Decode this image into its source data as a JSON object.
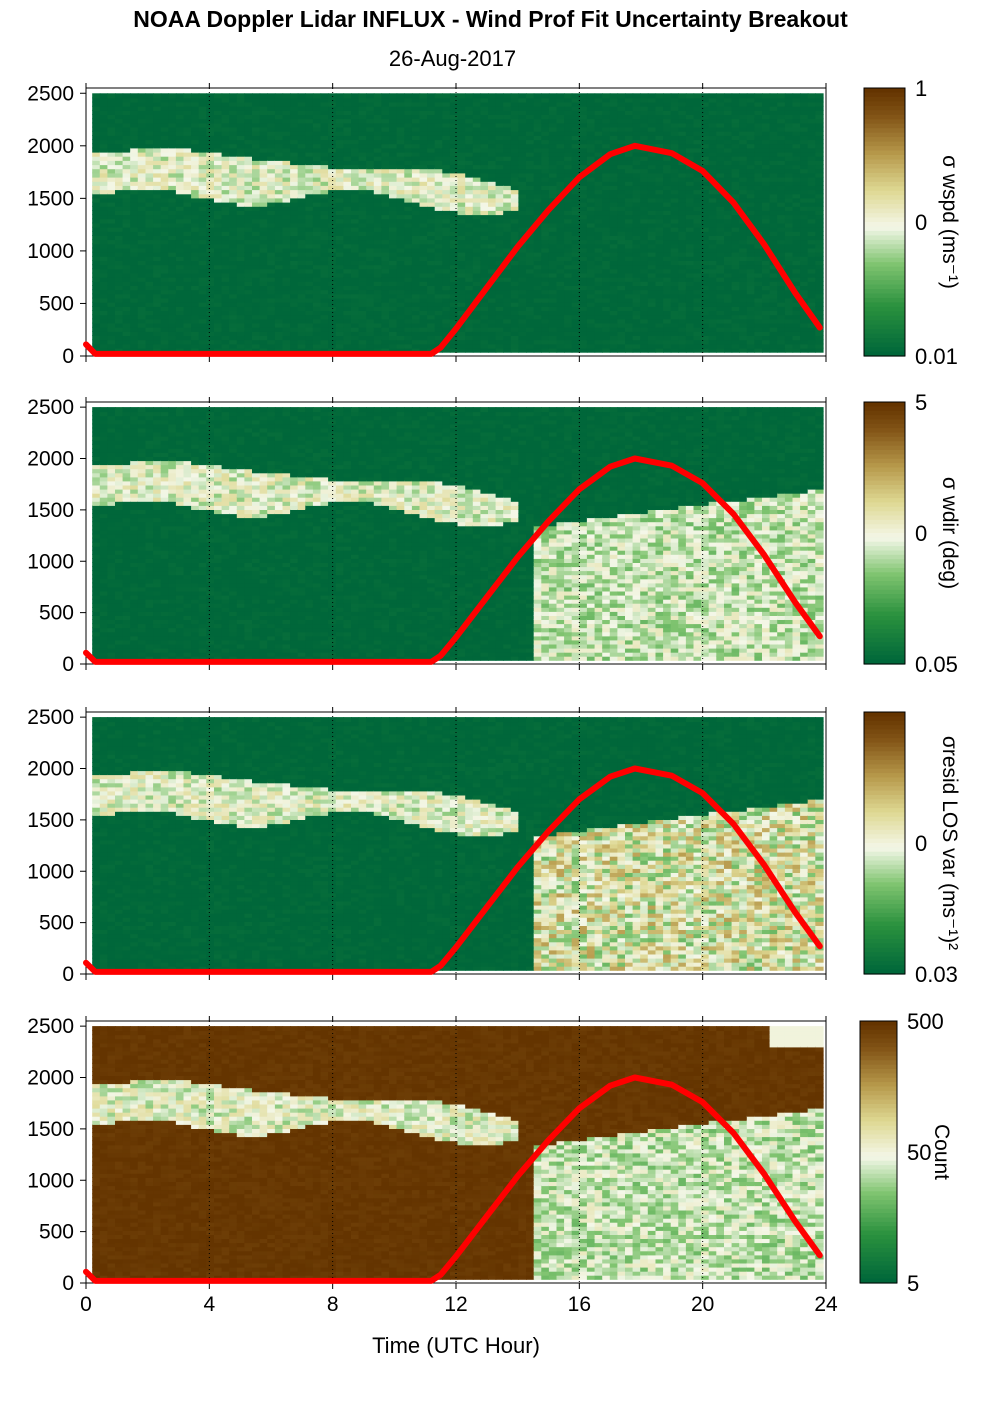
{
  "title": "NOAA Doppler Lidar INFLUX - Wind Prof Fit Uncertainty Breakout",
  "subtitle": "26-Aug-2017",
  "colors": {
    "sun_curve": "#ff0000",
    "low": "#00673a",
    "mid": "#f4f7e8",
    "high": "#643400"
  },
  "chart_data": [
    {
      "type": "heatmap",
      "colorbar_label": "σ wspd (ms⁻¹)",
      "colorbar_ticks": [
        "1",
        "0",
        "0.01"
      ],
      "x_ticks": [
        "0",
        "4",
        "8",
        "12",
        "16",
        "20",
        "24"
      ],
      "y_ticks": [
        "0",
        "500",
        "1000",
        "1500",
        "2000",
        "2500"
      ],
      "xlim": [
        0,
        24
      ],
      "ylim": [
        0,
        2550
      ]
    },
    {
      "type": "heatmap",
      "colorbar_label": "σ wdir (deg)",
      "colorbar_ticks": [
        "5",
        "0",
        "0.05"
      ],
      "x_ticks": [
        "0",
        "4",
        "8",
        "12",
        "16",
        "20",
        "24"
      ],
      "y_ticks": [
        "0",
        "500",
        "1000",
        "1500",
        "2000",
        "2500"
      ],
      "xlim": [
        0,
        24
      ],
      "ylim": [
        0,
        2550
      ]
    },
    {
      "type": "heatmap",
      "colorbar_label": "σresid LOS var (ms⁻¹)²",
      "colorbar_ticks": [
        "0",
        "0.03"
      ],
      "x_ticks": [
        "0",
        "4",
        "8",
        "12",
        "16",
        "20",
        "24"
      ],
      "y_ticks": [
        "0",
        "500",
        "1000",
        "1500",
        "2000",
        "2500"
      ],
      "xlim": [
        0,
        24
      ],
      "ylim": [
        0,
        2550
      ]
    },
    {
      "type": "heatmap",
      "colorbar_label": "Count",
      "colorbar_ticks": [
        "500",
        "50",
        "5"
      ],
      "x_ticks": [
        "0",
        "4",
        "8",
        "12",
        "16",
        "20",
        "24"
      ],
      "y_ticks": [
        "0",
        "500",
        "1000",
        "1500",
        "2000",
        "2500"
      ],
      "xlim": [
        0,
        24
      ],
      "ylim": [
        0,
        2550
      ],
      "xlabel": "Time (UTC Hour)"
    }
  ],
  "sun_elevation_curve": {
    "x": [
      0,
      0.3,
      11.2,
      11.5,
      12,
      13,
      14,
      15,
      16,
      17,
      17.8,
      19,
      20,
      21,
      22,
      23,
      23.8
    ],
    "y": [
      110,
      20,
      20,
      80,
      260,
      650,
      1040,
      1390,
      1700,
      1920,
      2000,
      1930,
      1760,
      1460,
      1060,
      600,
      270
    ]
  }
}
